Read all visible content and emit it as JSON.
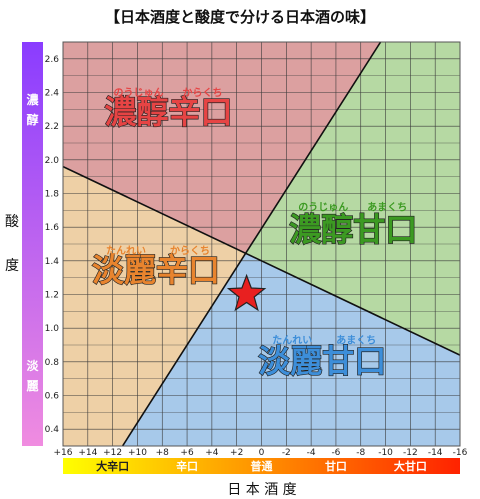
{
  "chart_data": {
    "type": "area",
    "title": "【日本酒度と酸度で分ける日本酒の味】",
    "xlabel": "日 本 酒 度",
    "ylabel_chars": [
      "酸",
      "度"
    ],
    "xlim": [
      16,
      -16
    ],
    "ylim": [
      0.3,
      2.7
    ],
    "x_ticks": [
      "+16",
      "+14",
      "+12",
      "+10",
      "+8",
      "+6",
      "+4",
      "+2",
      "0",
      "-2",
      "-4",
      "-6",
      "-8",
      "-10",
      "-12",
      "-14",
      "-16"
    ],
    "y_ticks": [
      "0.4",
      "0.6",
      "0.8",
      "1.0",
      "1.2",
      "1.4",
      "1.6",
      "1.8",
      "2.0",
      "2.2",
      "2.4",
      "2.6"
    ],
    "grid": true,
    "y_scale": {
      "top_chars": [
        "濃",
        "醇"
      ],
      "bottom_chars": [
        "淡",
        "麗"
      ],
      "colors": [
        "#8a3cff",
        "#f08ce0"
      ]
    },
    "x_scale": {
      "labels": [
        "大辛口",
        "辛口",
        "普通",
        "甘口",
        "大甘口"
      ],
      "colors": [
        "#ffff00",
        "#ff2200"
      ]
    },
    "boundary_lines": [
      {
        "from": [
          16,
          1.96
        ],
        "to": [
          -16,
          0.84
        ]
      },
      {
        "from": [
          11.2,
          0.3
        ],
        "to": [
          -9.6,
          2.7
        ]
      }
    ],
    "center_marker": {
      "x": 1.2,
      "y": 1.2,
      "color": "#e82020"
    },
    "zones": [
      {
        "label": "濃醇辛口",
        "ruby": [
          "のうじゅん",
          "からくち"
        ],
        "fill": "#dca0a0",
        "text_color": "#e64444",
        "label_x": 7.5,
        "label_y": 2.22,
        "ruby_y": 2.38
      },
      {
        "label": "濃醇甘口",
        "ruby": [
          "のうじゅん",
          "あまくち"
        ],
        "fill": "#b6d9a3",
        "text_color": "#3c9a22",
        "label_x": -7.4,
        "label_y": 1.52,
        "ruby_y": 1.7
      },
      {
        "label": "淡麗辛口",
        "ruby": [
          "たんれい",
          "からくち"
        ],
        "fill": "#eed0a6",
        "text_color": "#e8842e",
        "label_x": 8.5,
        "label_y": 1.28,
        "ruby_y": 1.44
      },
      {
        "label": "淡麗甘口",
        "ruby": [
          "たんれい",
          "あまくち"
        ],
        "fill": "#a7c9ea",
        "text_color": "#3d8ed9",
        "label_x": -4.9,
        "label_y": 0.74,
        "ruby_y": 0.91
      }
    ]
  }
}
